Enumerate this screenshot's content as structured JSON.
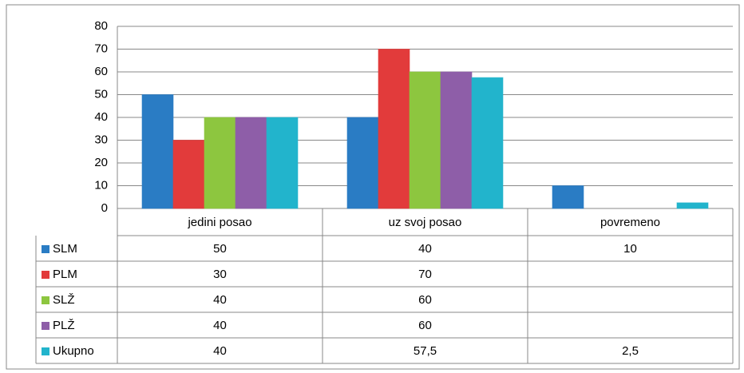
{
  "chart_data": {
    "type": "bar",
    "categories": [
      "jedini posao",
      "uz svoj posao",
      "povremeno"
    ],
    "series": [
      {
        "name": "SLM",
        "color": "#2a7cc4",
        "values": [
          50,
          40,
          10
        ]
      },
      {
        "name": "PLM",
        "color": "#e23b3b",
        "values": [
          30,
          70,
          null
        ]
      },
      {
        "name": "SLŽ",
        "color": "#8dc63f",
        "values": [
          40,
          60,
          null
        ]
      },
      {
        "name": "PLŽ",
        "color": "#8e5ea8",
        "values": [
          40,
          60,
          null
        ]
      },
      {
        "name": "Ukupno",
        "color": "#22b4cc",
        "values": [
          40,
          57.5,
          2.5
        ],
        "value_labels": [
          "40",
          "57,5",
          "2,5"
        ]
      }
    ],
    "ylim": [
      0,
      80
    ],
    "yticks": [
      0,
      10,
      20,
      30,
      40,
      50,
      60,
      70,
      80
    ],
    "grid": true,
    "data_table": true
  }
}
